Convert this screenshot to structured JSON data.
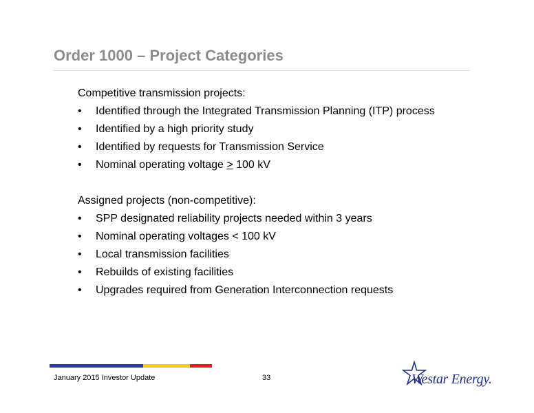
{
  "slide": {
    "title": "Order 1000 – Project Categories"
  },
  "competitive": {
    "heading": "Competitive transmission projects:",
    "items": [
      "Identified through the Integrated Transmission Planning (ITP) process",
      "Identified by a high priority study",
      "Identified by requests for Transmission Service"
    ],
    "voltage_prefix": "Nominal operating voltage ",
    "voltage_symbol": ">",
    "voltage_suffix": " 100 kV"
  },
  "assigned": {
    "heading": "Assigned projects (non-competitive):",
    "items": [
      "SPP designated reliability projects needed within 3 years",
      "Nominal operating voltages < 100 kV",
      "Local transmission facilities",
      "Rebuilds of existing facilities",
      "Upgrades required from Generation Interconnection requests"
    ]
  },
  "bullet_char": "•",
  "footer": {
    "left_text": "January 2015 Investor Update",
    "page_number": "33"
  },
  "logo": {
    "text": "Westar Energy.",
    "icon": "star-icon"
  },
  "colors": {
    "title": "#8c8c8c",
    "bar_blue": "#2e3a97",
    "bar_yellow": "#f7cc16",
    "bar_red": "#e21d25",
    "logo_blue": "#1f2f86"
  }
}
